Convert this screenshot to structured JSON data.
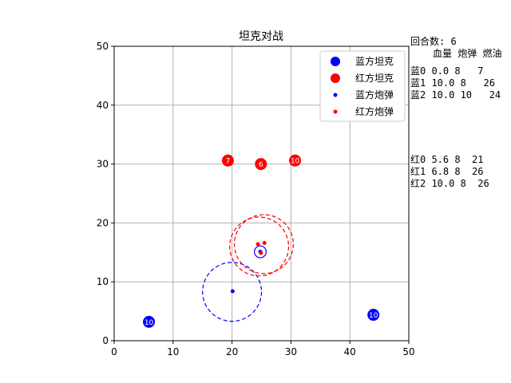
{
  "title": "坦克对战",
  "turn": "回合数: 6",
  "stats_header": "血量 炮弹 燃油",
  "blue_rows": [
    "蓝0 0.0 8   7",
    "蓝1 10.0 8   26",
    "蓝2 10.0 10   24"
  ],
  "red_rows": [
    "红0 5.6 8  21",
    "红1 6.8 8  26",
    "红2 10.0 8  26"
  ],
  "legend": {
    "blue_tank": "蓝方坦克",
    "red_tank": "红方坦克",
    "blue_shell": "蓝方炮弹",
    "red_shell": "红方炮弹"
  },
  "colors": {
    "blue": "#0000ff",
    "red": "#ff0000"
  },
  "chart_data": {
    "type": "scatter",
    "title": "坦克对战",
    "xlim": [
      0,
      50
    ],
    "ylim": [
      0,
      50
    ],
    "x_ticks": [
      "0",
      "10",
      "20",
      "30",
      "40",
      "50"
    ],
    "y_ticks": [
      "0",
      "10",
      "20",
      "30",
      "40",
      "50"
    ],
    "grid": true,
    "legend_position": "top-right",
    "blue_tanks": [
      {
        "x": 5.9,
        "y": 3.2,
        "label": "10"
      },
      {
        "x": 44.0,
        "y": 4.4,
        "label": "10"
      },
      {
        "x": 24.8,
        "y": 15.1,
        "label": ""
      }
    ],
    "red_tanks": [
      {
        "x": 19.3,
        "y": 30.6,
        "label": "7"
      },
      {
        "x": 24.9,
        "y": 30.0,
        "label": "6"
      },
      {
        "x": 30.7,
        "y": 30.6,
        "label": "10"
      }
    ],
    "blue_shells": [
      {
        "x": 20.1,
        "y": 8.4
      }
    ],
    "red_shells": [
      {
        "x": 24.4,
        "y": 16.4
      },
      {
        "x": 25.5,
        "y": 16.6
      },
      {
        "x": 24.9,
        "y": 14.9
      }
    ],
    "blue_range_circles": [
      {
        "x": 20.0,
        "y": 8.3,
        "r": 5.0
      }
    ],
    "red_range_circles": [
      {
        "x": 24.6,
        "y": 16.0,
        "r": 5.0
      },
      {
        "x": 25.4,
        "y": 16.4,
        "r": 5.0
      },
      {
        "x": 24.8,
        "y": 15.1,
        "r": 1.0
      }
    ]
  }
}
